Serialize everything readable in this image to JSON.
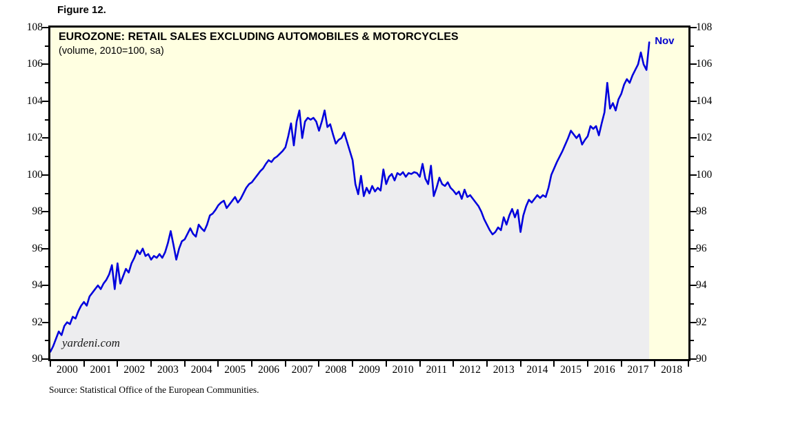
{
  "figure_label": "Figure 12.",
  "chart": {
    "title": "EUROZONE: RETAIL SALES EXCLUDING AUTOMOBILES & MOTORCYCLES",
    "subtitle": "(volume, 2010=100, sa)",
    "watermark": "yardeni.com",
    "colors": {
      "plot_background": "#FFFFE1",
      "area_fill": "#EDEDEF",
      "line": "#0000DD",
      "frame": "#000000",
      "text": "#000000",
      "annotation": "#0000CC"
    }
  },
  "source": "Source: Statistical Office of the European Communities.",
  "chart_data": {
    "type": "area",
    "title": "EUROZONE: RETAIL SALES EXCLUDING AUTOMOBILES & MOTORCYCLES",
    "subtitle": "(volume, 2010=100, sa)",
    "frequency": "monthly",
    "start_year": 2000,
    "start_month": 1,
    "x_axis": {
      "year_labels": [
        2000,
        2001,
        2002,
        2003,
        2004,
        2005,
        2006,
        2007,
        2008,
        2009,
        2010,
        2011,
        2012,
        2013,
        2014,
        2015,
        2016,
        2017,
        2018
      ],
      "range_years": [
        2000,
        2019
      ]
    },
    "y_axis": {
      "min": 90,
      "max": 108,
      "major_ticks": [
        90,
        92,
        94,
        96,
        98,
        100,
        102,
        104,
        106,
        108
      ],
      "minor_step": 1,
      "label_sides": "both",
      "grid": false
    },
    "legend": "none",
    "series": [
      {
        "name": "Retail sales volume excluding automobiles & motorcycles (2010=100, sa)",
        "values": [
          90.4,
          90.7,
          91.1,
          91.5,
          91.3,
          91.8,
          92.0,
          91.9,
          92.3,
          92.2,
          92.6,
          92.9,
          93.1,
          92.9,
          93.4,
          93.6,
          93.8,
          94.0,
          93.8,
          94.1,
          94.3,
          94.6,
          95.1,
          93.8,
          95.2,
          94.1,
          94.5,
          94.9,
          94.7,
          95.2,
          95.5,
          95.9,
          95.7,
          96.0,
          95.6,
          95.7,
          95.4,
          95.6,
          95.5,
          95.7,
          95.5,
          95.8,
          96.3,
          96.95,
          96.2,
          95.4,
          96.0,
          96.4,
          96.5,
          96.8,
          97.1,
          96.8,
          96.65,
          97.3,
          97.1,
          96.95,
          97.3,
          97.8,
          97.9,
          98.1,
          98.35,
          98.5,
          98.6,
          98.2,
          98.4,
          98.6,
          98.8,
          98.5,
          98.7,
          99.0,
          99.3,
          99.5,
          99.6,
          99.8,
          100.0,
          100.2,
          100.35,
          100.6,
          100.8,
          100.7,
          100.9,
          101.0,
          101.15,
          101.3,
          101.5,
          102.1,
          102.8,
          101.6,
          102.9,
          103.5,
          102.0,
          102.9,
          103.1,
          103.0,
          103.1,
          102.9,
          102.4,
          102.9,
          103.5,
          102.6,
          102.75,
          102.2,
          101.7,
          101.9,
          102.0,
          102.3,
          101.8,
          101.3,
          100.8,
          99.5,
          98.95,
          99.95,
          98.85,
          99.3,
          99.0,
          99.4,
          99.1,
          99.3,
          99.15,
          100.3,
          99.5,
          99.9,
          100.05,
          99.7,
          100.1,
          100.0,
          100.15,
          99.9,
          100.1,
          100.05,
          100.15,
          100.1,
          99.9,
          100.6,
          99.8,
          99.5,
          100.5,
          98.85,
          99.3,
          99.85,
          99.5,
          99.4,
          99.6,
          99.3,
          99.15,
          98.95,
          99.1,
          98.7,
          99.2,
          98.8,
          98.9,
          98.7,
          98.5,
          98.3,
          98.0,
          97.6,
          97.3,
          97.0,
          96.77,
          96.9,
          97.15,
          97.0,
          97.7,
          97.3,
          97.8,
          98.15,
          97.7,
          98.1,
          96.9,
          97.8,
          98.3,
          98.65,
          98.5,
          98.7,
          98.9,
          98.75,
          98.9,
          98.8,
          99.3,
          100.0,
          100.35,
          100.7,
          101.0,
          101.3,
          101.65,
          102.0,
          102.4,
          102.2,
          102.0,
          102.2,
          101.65,
          101.9,
          102.1,
          102.65,
          102.5,
          102.65,
          102.15,
          102.8,
          103.4,
          105.0,
          103.6,
          103.9,
          103.5,
          104.1,
          104.4,
          104.9,
          105.2,
          105.0,
          105.4,
          105.7,
          106.0,
          106.65,
          106.0,
          105.7,
          107.2
        ]
      }
    ],
    "last_point": {
      "label": "Nov",
      "year": 2017,
      "month": 11,
      "value": 107.2
    }
  }
}
